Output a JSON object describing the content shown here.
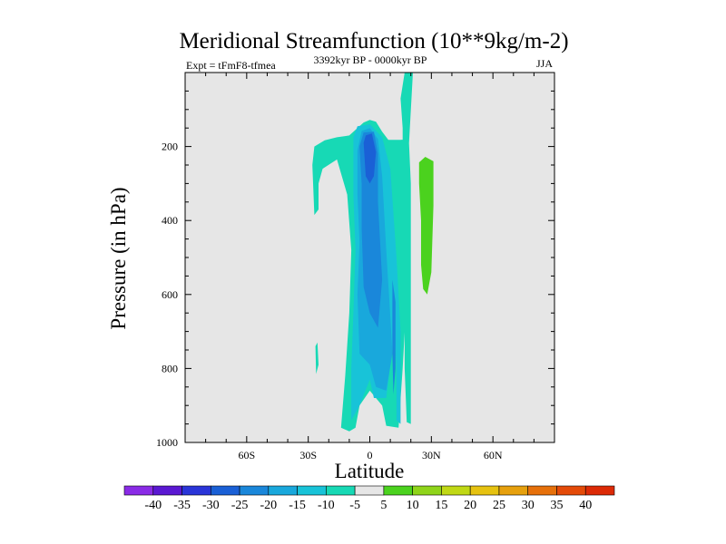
{
  "chart_data": {
    "type": "heatmap",
    "title": "Meridional Streamfunction (10**9kg/m-2)",
    "left_string": "Expt = tFmF8-tfmea",
    "center_string": "3392kyr BP - 0000kyr BP",
    "right_string": "JJA",
    "xlabel": "Latitude",
    "ylabel": "Pressure (in hPa)",
    "x_range": [
      -90,
      90
    ],
    "y_range": [
      0,
      1000
    ],
    "x_ticks": [
      {
        "value": -60,
        "label": "60S"
      },
      {
        "value": -30,
        "label": "30S"
      },
      {
        "value": 0,
        "label": "0"
      },
      {
        "value": 30,
        "label": "30N"
      },
      {
        "value": 60,
        "label": "60N"
      }
    ],
    "y_ticks": [
      {
        "value": 200,
        "label": "200"
      },
      {
        "value": 400,
        "label": "400"
      },
      {
        "value": 600,
        "label": "600"
      },
      {
        "value": 800,
        "label": "800"
      },
      {
        "value": 1000,
        "label": "1000"
      }
    ],
    "missing_color": "#e6e6e6",
    "colorbar": {
      "levels": [
        "-40",
        "-35",
        "-30",
        "-25",
        "-20",
        "-15",
        "-10",
        "-5",
        "5",
        "10",
        "15",
        "20",
        "25",
        "30",
        "35",
        "40"
      ],
      "colors": [
        "#8a2be6",
        "#5a18d2",
        "#2a35d8",
        "#1a60d6",
        "#1a87da",
        "#19a8dc",
        "#18c3d8",
        "#17d9b5",
        "#e6e6e6",
        "#4bd21e",
        "#8fd41a",
        "#c0d815",
        "#e6c210",
        "#e6a00d",
        "#e6700a",
        "#e44a08",
        "#dc2a06"
      ]
    },
    "regions": [
      {
        "name": "band-minus5-main",
        "bin": 7,
        "points": [
          [
            -27,
            200
          ],
          [
            -22,
            183
          ],
          [
            -16,
            175
          ],
          [
            -10,
            170
          ],
          [
            -6,
            150
          ],
          [
            -3,
            135
          ],
          [
            0,
            128
          ],
          [
            3,
            133
          ],
          [
            6,
            160
          ],
          [
            9,
            182
          ],
          [
            15,
            182
          ],
          [
            19,
            180
          ],
          [
            20,
            300
          ],
          [
            20,
            500
          ],
          [
            20,
            700
          ],
          [
            20,
            950
          ],
          [
            18,
            945
          ],
          [
            17,
            800
          ],
          [
            17,
            600
          ],
          [
            16,
            400
          ],
          [
            16,
            150
          ],
          [
            15,
            70
          ],
          [
            17,
            0
          ],
          [
            21,
            0
          ],
          [
            19,
            200
          ],
          [
            18,
            400
          ],
          [
            18,
            600
          ],
          [
            16,
            800
          ],
          [
            14,
            960
          ],
          [
            8,
            955
          ],
          [
            6,
            900
          ],
          [
            0,
            860
          ],
          [
            -5,
            900
          ],
          [
            -7,
            960
          ],
          [
            -10,
            970
          ],
          [
            -14,
            960
          ],
          [
            -12,
            820
          ],
          [
            -10,
            650
          ],
          [
            -9,
            480
          ],
          [
            -11,
            330
          ],
          [
            -16,
            235
          ],
          [
            -23,
            260
          ],
          [
            -25,
            300
          ],
          [
            -25,
            370
          ],
          [
            -27,
            385
          ],
          [
            -28,
            250
          ]
        ]
      },
      {
        "name": "band-minus5-speck",
        "bin": 7,
        "points": [
          [
            -26.5,
            740
          ],
          [
            -25.5,
            730
          ],
          [
            -25,
            790
          ],
          [
            -26.2,
            815
          ]
        ]
      },
      {
        "name": "band-minus10",
        "bin": 6,
        "points": [
          [
            -8,
            175
          ],
          [
            -6,
            145
          ],
          [
            0,
            140
          ],
          [
            6,
            175
          ],
          [
            10,
            260
          ],
          [
            13,
            500
          ],
          [
            15,
            700
          ],
          [
            15,
            950
          ],
          [
            13,
            940
          ],
          [
            13,
            800
          ],
          [
            12,
            700
          ],
          [
            8,
            880
          ],
          [
            2,
            880
          ],
          [
            0,
            830
          ],
          [
            -5,
            900
          ],
          [
            -9,
            940
          ],
          [
            -9,
            800
          ],
          [
            -8,
            650
          ],
          [
            -7,
            480
          ],
          [
            -8,
            330
          ]
        ]
      },
      {
        "name": "band-minus15",
        "bin": 5,
        "points": [
          [
            -6,
            210
          ],
          [
            -4,
            158
          ],
          [
            0,
            150
          ],
          [
            4,
            180
          ],
          [
            6,
            280
          ],
          [
            8,
            480
          ],
          [
            10,
            660
          ],
          [
            11,
            760
          ],
          [
            8,
            860
          ],
          [
            3,
            850
          ],
          [
            0,
            790
          ],
          [
            -5,
            760
          ],
          [
            -6,
            600
          ],
          [
            -5,
            460
          ],
          [
            -6,
            330
          ]
        ]
      },
      {
        "name": "band-minus20",
        "bin": 4,
        "points": [
          [
            -5,
            200
          ],
          [
            -3,
            162
          ],
          [
            2,
            160
          ],
          [
            4,
            220
          ],
          [
            4,
            350
          ],
          [
            6,
            560
          ],
          [
            4,
            690
          ],
          [
            0,
            650
          ],
          [
            -3,
            580
          ],
          [
            -4,
            420
          ],
          [
            -4,
            300
          ]
        ]
      },
      {
        "name": "band-minus25",
        "bin": 3,
        "points": [
          [
            -3,
            190
          ],
          [
            -2,
            170
          ],
          [
            1,
            165
          ],
          [
            3,
            215
          ],
          [
            2,
            280
          ],
          [
            0,
            300
          ],
          [
            -2,
            280
          ]
        ]
      },
      {
        "name": "band-minus25-lower",
        "bin": 4,
        "points": [
          [
            11,
            560
          ],
          [
            12.5,
            620
          ],
          [
            12.5,
            800
          ],
          [
            11.5,
            870
          ],
          [
            11,
            760
          ]
        ]
      },
      {
        "name": "band-plus5",
        "bin": 9,
        "points": [
          [
            24,
            243
          ],
          [
            27,
            228
          ],
          [
            31,
            240
          ],
          [
            31,
            360
          ],
          [
            30,
            540
          ],
          [
            28,
            600
          ],
          [
            26,
            585
          ],
          [
            25,
            520
          ],
          [
            25,
            400
          ],
          [
            24,
            300
          ]
        ]
      }
    ]
  }
}
